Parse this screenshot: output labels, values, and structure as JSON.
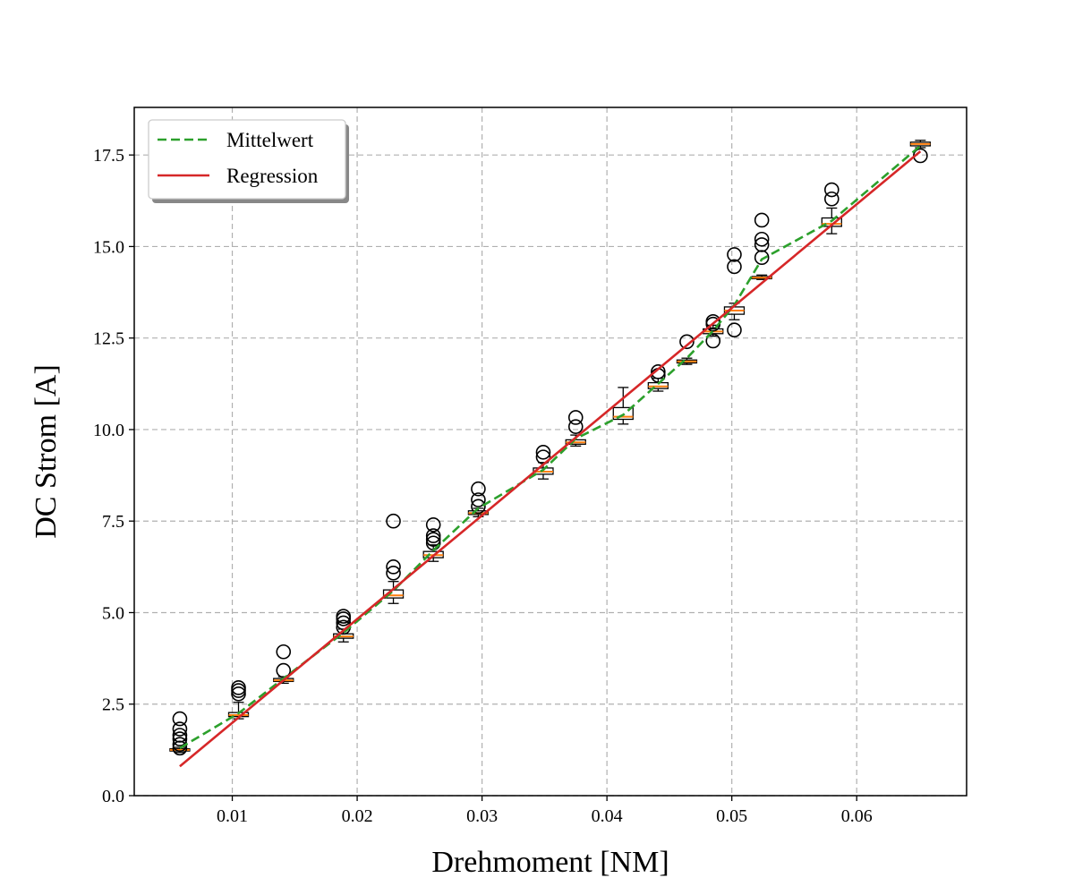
{
  "chart_data": {
    "type": "box",
    "title": "",
    "xlabel": "Drehmoment [NM]",
    "ylabel": "DC Strom [A]",
    "xlim": [
      0.00215,
      0.0688
    ],
    "ylim": [
      0.0,
      18.8
    ],
    "xticks": [
      0.01,
      0.02,
      0.03,
      0.04,
      0.05,
      0.06
    ],
    "xtick_labels": [
      "0.01",
      "0.02",
      "0.03",
      "0.04",
      "0.05",
      "0.06"
    ],
    "yticks": [
      0.0,
      2.5,
      5.0,
      7.5,
      10.0,
      12.5,
      15.0,
      17.5
    ],
    "ytick_labels": [
      "0.0",
      "2.5",
      "5.0",
      "7.5",
      "10.0",
      "12.5",
      "15.0",
      "17.5"
    ],
    "grid": true,
    "legend_position": "top-left",
    "colors": {
      "mean": "#2ca02c",
      "regression": "#d62728",
      "median": "#ff7f0e",
      "box": "#000000"
    },
    "boxes": [
      {
        "x": 0.0058,
        "whislo": 1.18,
        "q1": 1.22,
        "med": 1.25,
        "q3": 1.28,
        "whishi": 1.32,
        "fliers": [
          1.3,
          1.4,
          1.55,
          1.65,
          1.82,
          2.1
        ]
      },
      {
        "x": 0.0105,
        "whislo": 2.1,
        "q1": 2.16,
        "med": 2.2,
        "q3": 2.27,
        "whishi": 2.55,
        "fliers": [
          2.78,
          2.87,
          2.95
        ]
      },
      {
        "x": 0.0141,
        "whislo": 3.07,
        "q1": 3.12,
        "med": 3.15,
        "q3": 3.2,
        "whishi": 3.25,
        "fliers": [
          3.42,
          3.93
        ]
      },
      {
        "x": 0.0189,
        "whislo": 4.2,
        "q1": 4.3,
        "med": 4.35,
        "q3": 4.42,
        "whishi": 4.55,
        "fliers": [
          4.6,
          4.72,
          4.83,
          4.9
        ]
      },
      {
        "x": 0.0229,
        "whislo": 5.25,
        "q1": 5.4,
        "med": 5.47,
        "q3": 5.62,
        "whishi": 5.85,
        "fliers": [
          6.08,
          6.25,
          7.5
        ]
      },
      {
        "x": 0.0261,
        "whislo": 6.4,
        "q1": 6.5,
        "med": 6.57,
        "q3": 6.67,
        "whishi": 6.85,
        "fliers": [
          6.9,
          7.0,
          7.1,
          7.4
        ]
      },
      {
        "x": 0.0297,
        "whislo": 7.62,
        "q1": 7.68,
        "med": 7.72,
        "q3": 7.78,
        "whishi": 7.85,
        "fliers": [
          7.9,
          8.08,
          8.38
        ]
      },
      {
        "x": 0.0349,
        "whislo": 8.65,
        "q1": 8.78,
        "med": 8.85,
        "q3": 8.95,
        "whishi": 9.1,
        "fliers": [
          9.25,
          9.38
        ]
      },
      {
        "x": 0.0375,
        "whislo": 9.55,
        "q1": 9.6,
        "med": 9.65,
        "q3": 9.72,
        "whishi": 9.85,
        "fliers": [
          10.08,
          10.33
        ]
      },
      {
        "x": 0.0413,
        "whislo": 10.15,
        "q1": 10.28,
        "med": 10.35,
        "q3": 10.6,
        "whishi": 11.15,
        "fliers": []
      },
      {
        "x": 0.0441,
        "whislo": 11.05,
        "q1": 11.12,
        "med": 11.18,
        "q3": 11.28,
        "whishi": 11.4,
        "fliers": [
          11.48,
          11.58
        ]
      },
      {
        "x": 0.0464,
        "whislo": 11.78,
        "q1": 11.82,
        "med": 11.86,
        "q3": 11.9,
        "whishi": 11.95,
        "fliers": [
          12.4
        ]
      },
      {
        "x": 0.0485,
        "whislo": 12.55,
        "q1": 12.62,
        "med": 12.68,
        "q3": 12.75,
        "whishi": 12.85,
        "fliers": [
          12.42,
          12.88,
          12.95
        ]
      },
      {
        "x": 0.0502,
        "whislo": 13.0,
        "q1": 13.15,
        "med": 13.25,
        "q3": 13.35,
        "whishi": 13.45,
        "fliers": [
          12.72,
          14.45,
          14.78
        ]
      },
      {
        "x": 0.0524,
        "whislo": 14.1,
        "q1": 14.12,
        "med": 14.15,
        "q3": 14.18,
        "whishi": 14.22,
        "fliers": [
          14.7,
          15.05,
          15.2,
          15.72
        ]
      },
      {
        "x": 0.058,
        "whislo": 15.35,
        "q1": 15.55,
        "med": 15.62,
        "q3": 15.78,
        "whishi": 16.05,
        "fliers": [
          16.3,
          16.55
        ]
      },
      {
        "x": 0.0651,
        "whislo": 17.7,
        "q1": 17.75,
        "med": 17.8,
        "q3": 17.85,
        "whishi": 17.9,
        "fliers": [
          17.48
        ]
      }
    ],
    "series": [
      {
        "name": "Mittelwert",
        "style": "dashed",
        "x": [
          0.0058,
          0.0105,
          0.0141,
          0.0189,
          0.0229,
          0.0261,
          0.0297,
          0.0349,
          0.0375,
          0.0413,
          0.0441,
          0.0464,
          0.0485,
          0.0502,
          0.0524,
          0.058,
          0.0651
        ],
        "y": [
          1.3,
          2.25,
          3.2,
          4.45,
          5.6,
          6.7,
          7.85,
          8.9,
          9.75,
          10.4,
          11.25,
          11.95,
          12.7,
          13.4,
          14.65,
          15.7,
          17.75
        ]
      },
      {
        "name": "Regression",
        "style": "solid",
        "x": [
          0.0058,
          0.0651
        ],
        "y": [
          0.8,
          17.6
        ]
      }
    ]
  }
}
